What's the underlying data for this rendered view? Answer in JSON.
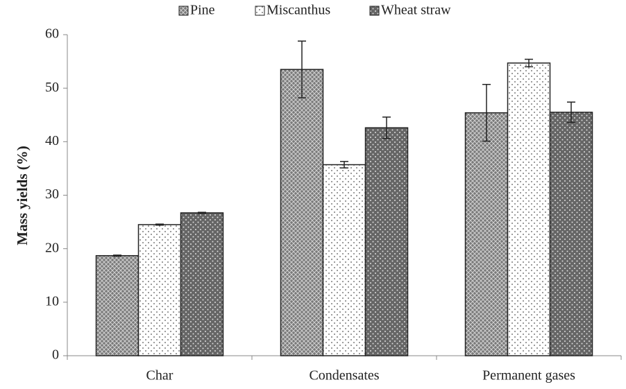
{
  "chart_data": {
    "type": "bar",
    "ylabel": "Mass yields (%)",
    "categories": [
      "Char",
      "Condensates",
      "Permanent gases"
    ],
    "series": [
      {
        "name": "Pine",
        "color": "#7a7a7a",
        "values": [
          18.7,
          53.5,
          45.4
        ],
        "errors": [
          0.1,
          5.3,
          5.3
        ]
      },
      {
        "name": "Miscanthus",
        "color": "#ffffff",
        "values": [
          24.5,
          35.7,
          54.7
        ],
        "errors": [
          0.1,
          0.6,
          0.7
        ]
      },
      {
        "name": "Wheat straw",
        "color": "#666666",
        "values": [
          26.7,
          42.6,
          45.5
        ],
        "errors": [
          0.1,
          2.0,
          1.9
        ]
      }
    ],
    "ylim": [
      0,
      60
    ],
    "yticks": [
      0,
      10,
      20,
      30,
      40,
      50,
      60
    ]
  }
}
